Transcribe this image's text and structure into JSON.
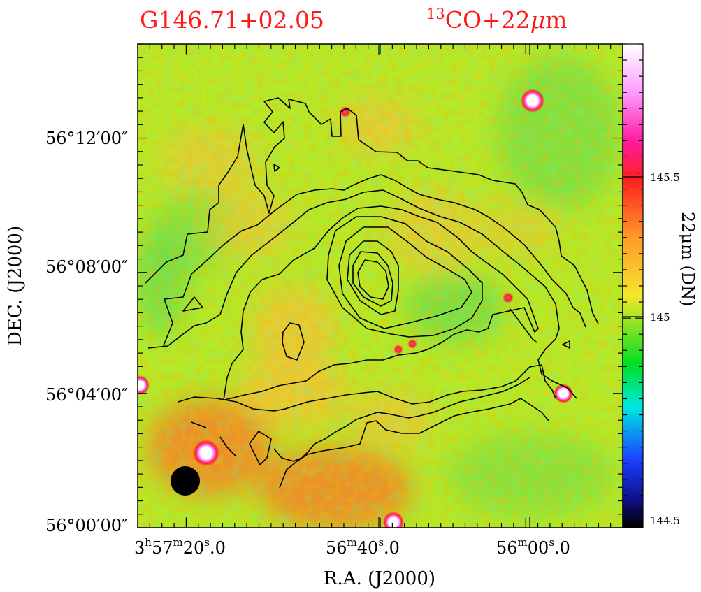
{
  "title": {
    "source": "G146.71+02.05",
    "tracer_sup": "13",
    "tracer_main": "CO+22",
    "tracer_mu": "μ",
    "tracer_unit": "m"
  },
  "axes": {
    "x_label": "R.A.  (J2000)",
    "y_label": "DEC.  (J2000)",
    "x_ticks": [
      {
        "h": "3",
        "hs": "h",
        "m": "57",
        "ms": "m",
        "s": "20",
        "ss": "s",
        "f": ".0"
      },
      {
        "m": "56",
        "ms": "m",
        "s": "40",
        "ss": "s",
        "f": ".0"
      },
      {
        "m": "56",
        "ms": "m",
        "s": "00",
        "ss": "s",
        "f": ".0"
      }
    ],
    "y_ticks": [
      "56°12′00″",
      "56°08′00″",
      "56°04′00″",
      "56°00′00″"
    ]
  },
  "colorbar": {
    "label": "22μm (DN)",
    "ticks": [
      "145.5",
      "145",
      "144.5"
    ],
    "range": [
      144.42,
      145.92
    ],
    "colors": [
      "#ffffff",
      "#ff55ff",
      "#ff1a1a",
      "#ff9a2a",
      "#f5e62a",
      "#00e020",
      "#00d8d8",
      "#1030ff",
      "#000000"
    ]
  },
  "beam": "filled black circle (lower-left)",
  "image_colors": {
    "background": "#b5ea28",
    "warm": "#f2c43a",
    "hot": "#f08a2a",
    "cool": "#5fdc50"
  }
}
